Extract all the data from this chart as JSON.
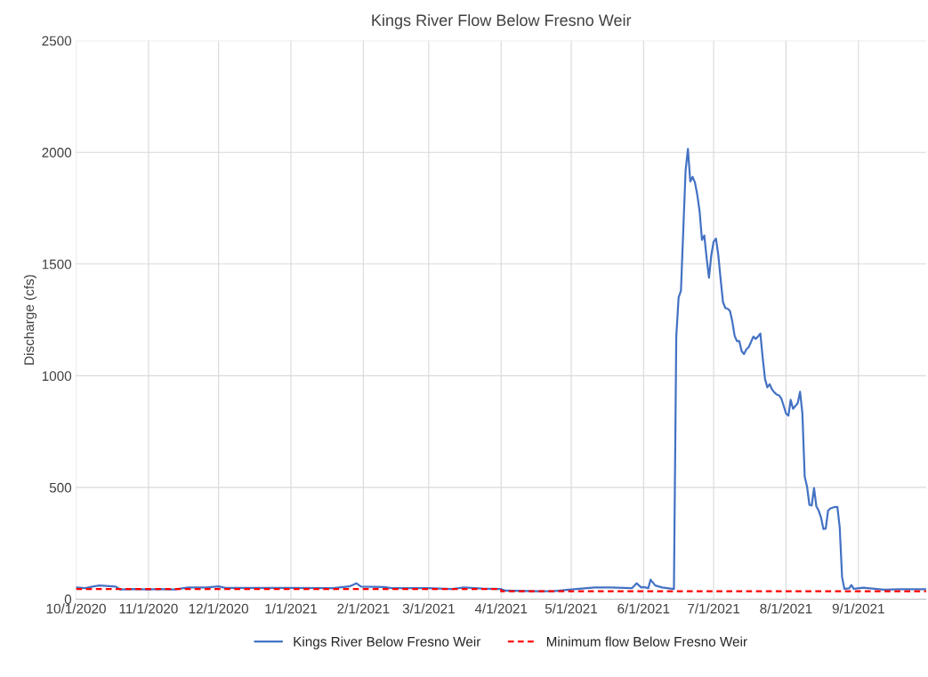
{
  "chart_data": {
    "type": "line",
    "title": "Kings River Flow Below Fresno Weir",
    "ylabel": "Discharge (cfs)",
    "xlim": [
      "2020-10-01",
      "2021-09-30"
    ],
    "xticks": [
      {
        "value": "2020-10-01",
        "label": "10/1/2020"
      },
      {
        "value": "2020-11-01",
        "label": "11/1/2020"
      },
      {
        "value": "2020-12-01",
        "label": "12/1/2020"
      },
      {
        "value": "2021-01-01",
        "label": "1/1/2021"
      },
      {
        "value": "2021-02-01",
        "label": "2/1/2021"
      },
      {
        "value": "2021-03-01",
        "label": "3/1/2021"
      },
      {
        "value": "2021-04-01",
        "label": "4/1/2021"
      },
      {
        "value": "2021-05-01",
        "label": "5/1/2021"
      },
      {
        "value": "2021-06-01",
        "label": "6/1/2021"
      },
      {
        "value": "2021-07-01",
        "label": "7/1/2021"
      },
      {
        "value": "2021-08-01",
        "label": "8/1/2021"
      },
      {
        "value": "2021-09-01",
        "label": "9/1/2021"
      }
    ],
    "ylim": [
      0,
      2500
    ],
    "yticks": [
      0,
      500,
      1000,
      1500,
      2000,
      2500
    ],
    "grid": true,
    "legend": "bottom",
    "series": [
      {
        "name": "Kings River Below Fresno Weir",
        "color": "#4472c4",
        "line_style": "solid",
        "x": [
          "2020-10-01",
          "2020-10-05",
          "2020-10-08",
          "2020-10-11",
          "2020-10-18",
          "2020-10-20",
          "2020-10-26",
          "2020-11-01",
          "2020-11-05",
          "2020-11-12",
          "2020-11-18",
          "2020-11-26",
          "2020-12-01",
          "2020-12-04",
          "2020-12-16",
          "2021-01-01",
          "2021-01-19",
          "2021-01-26",
          "2021-01-29",
          "2021-01-31",
          "2021-02-10",
          "2021-02-13",
          "2021-03-01",
          "2021-03-11",
          "2021-03-16",
          "2021-03-24",
          "2021-04-01",
          "2021-04-03",
          "2021-04-17",
          "2021-04-24",
          "2021-05-01",
          "2021-05-11",
          "2021-05-18",
          "2021-05-27",
          "2021-05-29",
          "2021-05-31",
          "2021-06-01",
          "2021-06-03",
          "2021-06-04",
          "2021-06-06",
          "2021-06-09",
          "2021-06-14",
          "2021-06-15",
          "2021-06-16",
          "2021-06-17",
          "2021-06-19",
          "2021-06-20",
          "2021-06-21",
          "2021-06-22",
          "2021-06-23",
          "2021-06-24",
          "2021-06-25",
          "2021-06-26",
          "2021-06-27",
          "2021-06-28",
          "2021-06-29",
          "2021-06-30",
          "2021-07-01",
          "2021-07-02",
          "2021-07-03",
          "2021-07-04",
          "2021-07-05",
          "2021-07-06",
          "2021-07-07",
          "2021-07-08",
          "2021-07-09",
          "2021-07-10",
          "2021-07-11",
          "2021-07-12",
          "2021-07-13",
          "2021-07-14",
          "2021-07-15",
          "2021-07-16",
          "2021-07-17",
          "2021-07-18",
          "2021-07-19",
          "2021-07-20",
          "2021-07-21",
          "2021-07-22",
          "2021-07-23",
          "2021-07-24",
          "2021-07-25",
          "2021-07-26",
          "2021-07-27",
          "2021-07-28",
          "2021-07-29",
          "2021-07-30",
          "2021-07-31",
          "2021-08-01",
          "2021-08-02",
          "2021-08-03",
          "2021-08-04",
          "2021-08-06",
          "2021-08-07",
          "2021-08-08",
          "2021-08-09",
          "2021-08-10",
          "2021-08-11",
          "2021-08-12",
          "2021-08-13",
          "2021-08-14",
          "2021-08-15",
          "2021-08-16",
          "2021-08-17",
          "2021-08-18",
          "2021-08-19",
          "2021-08-20",
          "2021-08-22",
          "2021-08-23",
          "2021-08-24",
          "2021-08-25",
          "2021-08-26",
          "2021-08-28",
          "2021-08-29",
          "2021-08-30",
          "2021-09-03",
          "2021-09-08",
          "2021-09-12",
          "2021-09-18",
          "2021-09-30"
        ],
        "values": [
          52,
          49,
          56,
          61,
          56,
          43,
          45,
          43,
          45,
          43,
          52,
          52,
          57,
          50,
          50,
          50,
          49,
          57,
          71,
          56,
          54,
          49,
          49,
          45,
          52,
          47,
          45,
          38,
          35,
          36,
          43,
          52,
          52,
          49,
          71,
          52,
          54,
          49,
          87,
          61,
          52,
          45,
          1175,
          1350,
          1380,
          1920,
          2015,
          1870,
          1890,
          1865,
          1810,
          1736,
          1608,
          1628,
          1527,
          1439,
          1540,
          1600,
          1614,
          1540,
          1432,
          1330,
          1303,
          1300,
          1290,
          1243,
          1178,
          1155,
          1155,
          1110,
          1097,
          1118,
          1128,
          1151,
          1175,
          1165,
          1175,
          1189,
          1081,
          986,
          948,
          962,
          939,
          925,
          916,
          912,
          898,
          865,
          831,
          821,
          892,
          852,
          877,
          928,
          833,
          548,
          504,
          422,
          419,
          497,
          415,
          396,
          365,
          314,
          316,
          396,
          406,
          413,
          413,
          320,
          99,
          46,
          48,
          63,
          46,
          51,
          46,
          42,
          44,
          44
        ]
      },
      {
        "name": "Minimum flow Below Fresno Weir",
        "color": "#ff0000",
        "type": "step",
        "line_style": "dashed",
        "x": [
          "2020-10-01",
          "2021-04-01",
          "2021-09-30"
        ],
        "values": [
          45,
          35,
          35
        ]
      }
    ]
  }
}
